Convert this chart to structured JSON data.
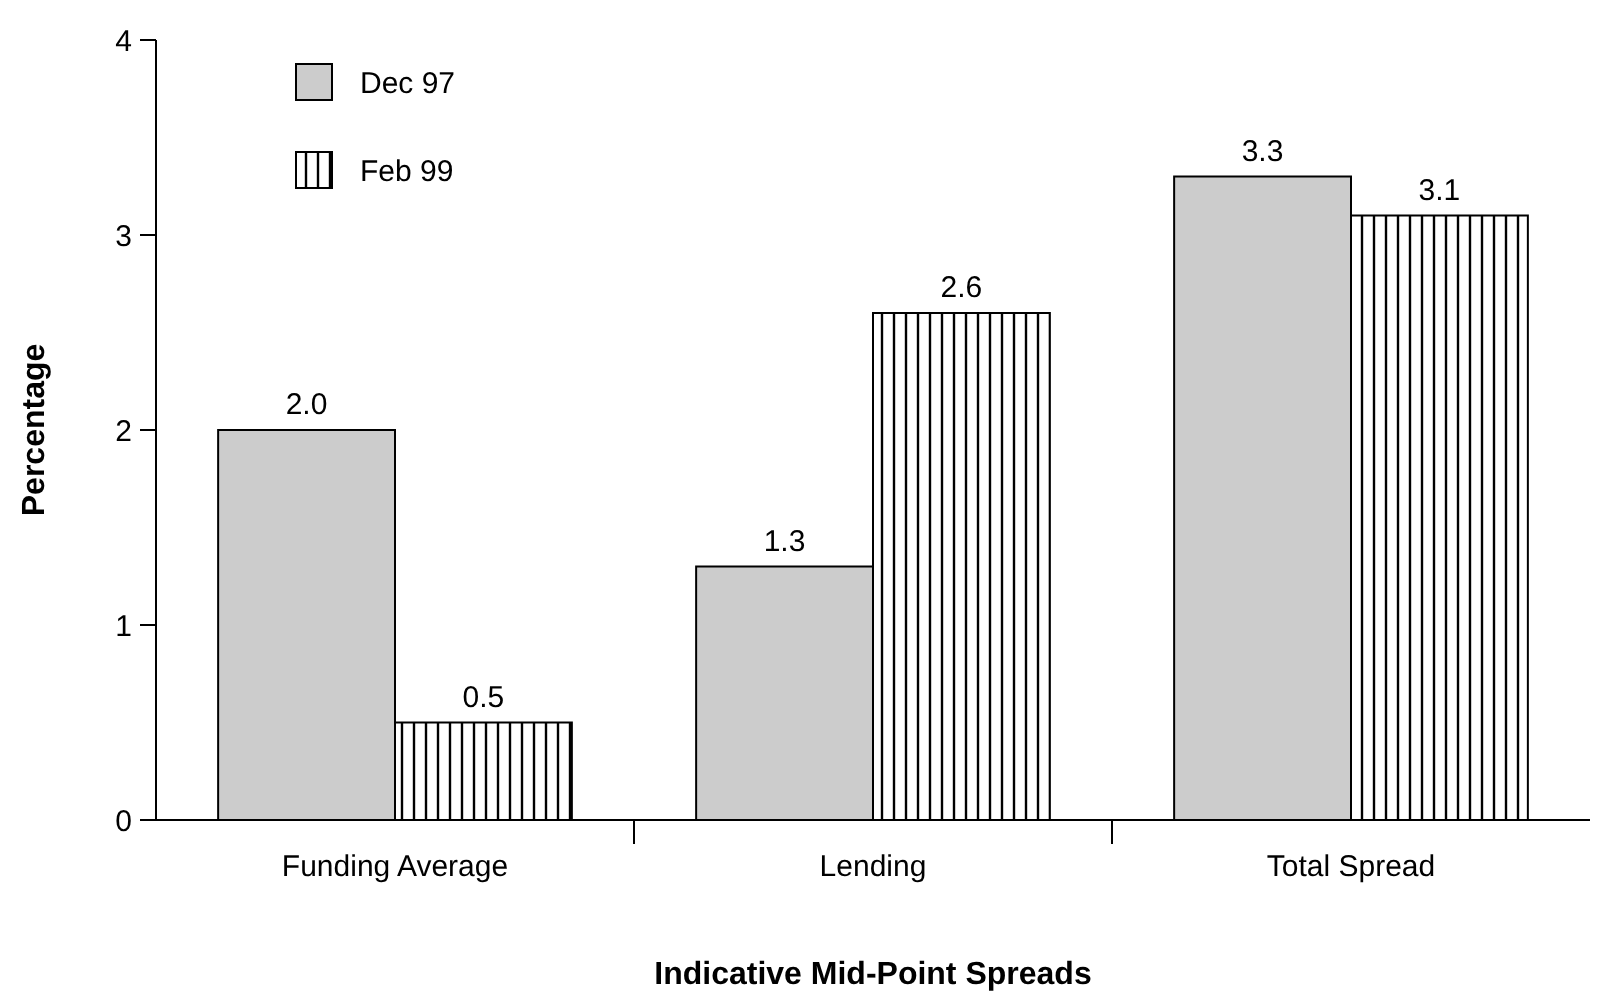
{
  "chart_data": {
    "type": "bar",
    "xlabel": "Indicative Mid-Point Spreads",
    "ylabel": "Percentage",
    "categories": [
      "Funding Average",
      "Lending",
      "Total Spread"
    ],
    "series": [
      {
        "name": "Dec 97",
        "color": "#cccccc",
        "values": [
          2.0,
          1.3,
          3.3
        ],
        "value_labels": [
          "2.0",
          "1.3",
          "3.3"
        ]
      },
      {
        "name": "Feb 99",
        "color": "#000000",
        "values": [
          0.5,
          2.6,
          3.1
        ],
        "value_labels": [
          "0.5",
          "2.6",
          "3.1"
        ]
      }
    ],
    "ylim": [
      0,
      4
    ],
    "yticks": [
      0,
      1,
      2,
      3,
      4
    ],
    "legend": "top left"
  }
}
